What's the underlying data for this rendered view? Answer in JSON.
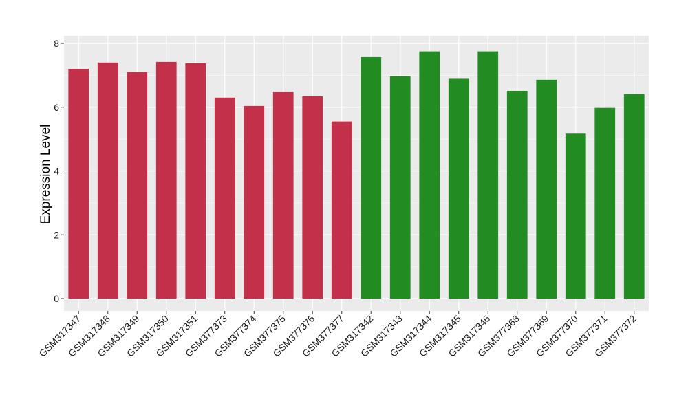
{
  "chart_data": {
    "type": "bar",
    "title": "",
    "xlabel": "",
    "ylabel": "Expression Level",
    "ylim": [
      0,
      8
    ],
    "yticks": [
      0,
      2,
      4,
      6,
      8
    ],
    "grid": true,
    "legend": "none",
    "categories": [
      "GSM317347",
      "GSM317348",
      "GSM317349",
      "GSM317350",
      "GSM317351",
      "GSM377373",
      "GSM377374",
      "GSM377375",
      "GSM377376",
      "GSM377377",
      "GSM317342",
      "GSM317343",
      "GSM317344",
      "GSM317345",
      "GSM317346",
      "GSM377368",
      "GSM377369",
      "GSM377370",
      "GSM377371",
      "GSM377372"
    ],
    "values": [
      7.2,
      7.4,
      7.1,
      7.42,
      7.38,
      6.3,
      6.04,
      6.47,
      6.34,
      5.55,
      7.57,
      6.97,
      7.75,
      6.89,
      7.75,
      6.51,
      6.86,
      5.17,
      5.98,
      6.41
    ],
    "groups": [
      0,
      0,
      0,
      0,
      0,
      0,
      0,
      0,
      0,
      0,
      1,
      1,
      1,
      1,
      1,
      1,
      1,
      1,
      1,
      1
    ],
    "group_colors": [
      "#c3304a",
      "#228b22"
    ],
    "panel_color": "#ebebeb",
    "grid_color": "#ffffff"
  }
}
